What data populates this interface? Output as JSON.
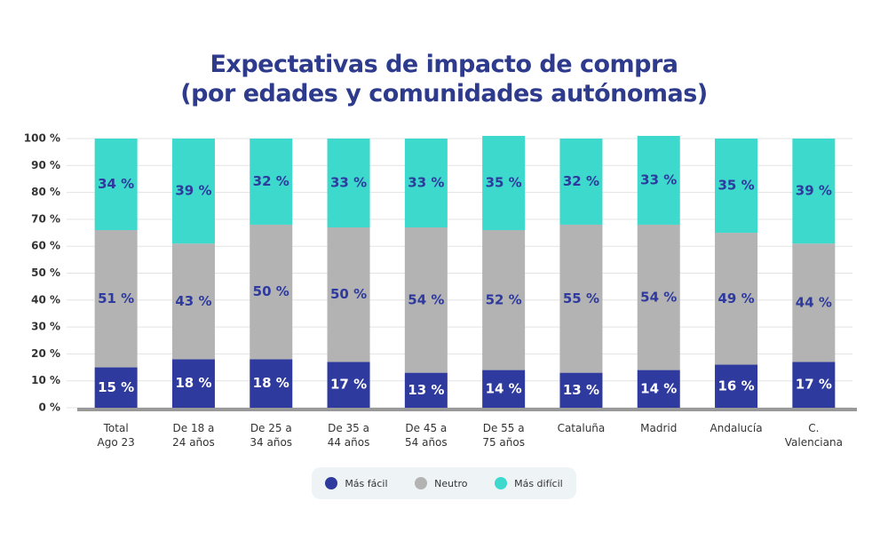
{
  "chart_data": {
    "type": "stacked-bar",
    "title": "Expectativas de impacto de compra\n(por edades y comunidades autónomas)",
    "categories": [
      "Total\nAgo 23",
      "De 18 a\n24 años",
      "De 25 a\n34 años",
      "De 35 a\n44 años",
      "De 45 a\n54 años",
      "De 55 a\n75 años",
      "Cataluña",
      "Madrid",
      "Andalucía",
      "C.\nValenciana"
    ],
    "series": [
      {
        "name": "Más fácil",
        "color": "#2e3a9e",
        "values": [
          15,
          18,
          18,
          17,
          13,
          14,
          13,
          14,
          16,
          17
        ],
        "value_labels": [
          "15 %",
          "18 %",
          "18 %",
          "17 %",
          "13 %",
          "14 %",
          "13 %",
          "14 %",
          "16 %",
          "17 %"
        ]
      },
      {
        "name": "Neutro",
        "color": "#b3b3b3",
        "values": [
          51,
          43,
          50,
          50,
          54,
          52,
          55,
          54,
          49,
          44
        ],
        "value_labels": [
          "51 %",
          "43 %",
          "50 %",
          "50 %",
          "54 %",
          "52 %",
          "55 %",
          "54 %",
          "49 %",
          "44 %"
        ]
      },
      {
        "name": "Más difícil",
        "color": "#3dd9cc",
        "values": [
          34,
          39,
          32,
          33,
          33,
          35,
          32,
          33,
          35,
          39
        ],
        "value_labels": [
          "34 %",
          "39 %",
          "32 %",
          "33 %",
          "33 %",
          "35 %",
          "32 %",
          "33 %",
          "35 %",
          "39 %"
        ]
      }
    ],
    "ylim": [
      0,
      100
    ],
    "yticks": [
      {
        "value": 0,
        "label": "0 %"
      },
      {
        "value": 10,
        "label": "10 %"
      },
      {
        "value": 20,
        "label": "20 %"
      },
      {
        "value": 30,
        "label": "30 %"
      },
      {
        "value": 40,
        "label": "40 %"
      },
      {
        "value": 50,
        "label": "50 %"
      },
      {
        "value": 60,
        "label": "60 %"
      },
      {
        "value": 70,
        "label": "70 %"
      },
      {
        "value": 80,
        "label": "80 %"
      },
      {
        "value": 90,
        "label": "90 %"
      },
      {
        "value": 100,
        "label": "100 %"
      }
    ],
    "grid": true
  }
}
